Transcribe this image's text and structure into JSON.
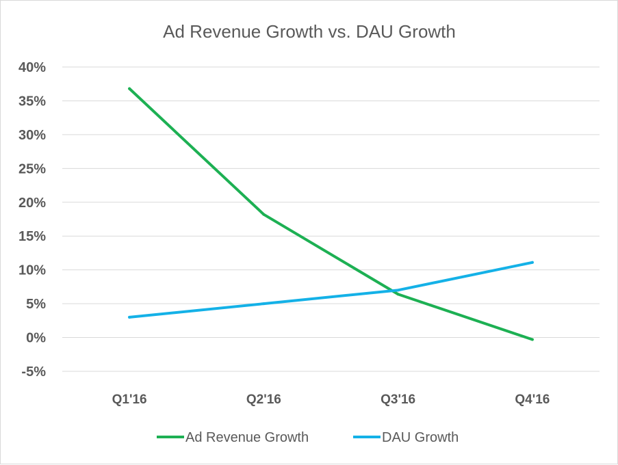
{
  "chart_data": {
    "type": "line",
    "title": "Ad Revenue Growth vs. DAU Growth",
    "xlabel": "",
    "ylabel": "",
    "categories": [
      "Q1'16",
      "Q2'16",
      "Q3'16",
      "Q4'16"
    ],
    "ylim": [
      -5,
      40
    ],
    "yticks": [
      40,
      35,
      30,
      25,
      20,
      15,
      10,
      5,
      0,
      -5
    ],
    "ytick_labels": [
      "40%",
      "35%",
      "30%",
      "25%",
      "20%",
      "15%",
      "10%",
      "5%",
      "0%",
      "-5%"
    ],
    "grid": true,
    "legend_position": "bottom",
    "series": [
      {
        "name": "Ad Revenue Growth",
        "color": "#1db053",
        "values": [
          36.8,
          18.2,
          6.4,
          -0.3
        ]
      },
      {
        "name": "DAU Growth",
        "color": "#14b1e7",
        "values": [
          3.0,
          5.0,
          7.0,
          11.1
        ]
      }
    ]
  }
}
